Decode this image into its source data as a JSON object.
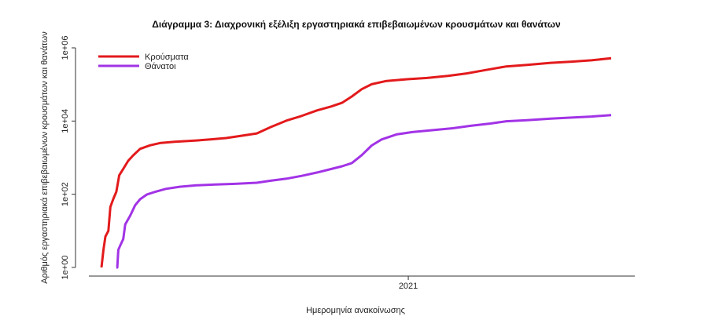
{
  "chart_data": {
    "type": "line",
    "title": "Διάγραμμα 3: Διαχρονική εξέλιξη εργαστηριακά επιβεβαιωμένων κρουσμάτων και θανάτων",
    "xlabel": "Ημερομηνία ανακοίνωσης",
    "ylabel": "Αριθμός εργαστηριακά επιβεβαιωμένων κρουσμάτων και θανάτων",
    "y_scale": "log",
    "ylim": [
      1,
      1000000
    ],
    "y_ticks": [
      {
        "value": 1,
        "label": "1e+00"
      },
      {
        "value": 100,
        "label": "1e+02"
      },
      {
        "value": 10000,
        "label": "1e+04"
      },
      {
        "value": 1000000,
        "label": "1e+06"
      }
    ],
    "xlim": [
      "2020-02-26",
      "2021-07-25"
    ],
    "x_ticks": [
      {
        "value": "2021-01-01",
        "label": "2021"
      }
    ],
    "legend_position": "top-left",
    "grid": false,
    "series": [
      {
        "name": "Κρούσματα",
        "color": "#e31a1c",
        "points": [
          [
            "2020-02-26",
            1
          ],
          [
            "2020-02-28",
            3
          ],
          [
            "2020-03-01",
            7
          ],
          [
            "2020-03-04",
            10
          ],
          [
            "2020-03-06",
            45
          ],
          [
            "2020-03-09",
            75
          ],
          [
            "2020-03-12",
            117
          ],
          [
            "2020-03-15",
            331
          ],
          [
            "2020-03-19",
            495
          ],
          [
            "2020-03-24",
            821
          ],
          [
            "2020-03-29",
            1156
          ],
          [
            "2020-04-05",
            1735
          ],
          [
            "2020-04-15",
            2170
          ],
          [
            "2020-04-25",
            2506
          ],
          [
            "2020-05-10",
            2716
          ],
          [
            "2020-06-01",
            2952
          ],
          [
            "2020-06-15",
            3148
          ],
          [
            "2020-07-01",
            3432
          ],
          [
            "2020-07-15",
            3910
          ],
          [
            "2020-08-01",
            4587
          ],
          [
            "2020-08-15",
            6858
          ],
          [
            "2020-08-31",
            10317
          ],
          [
            "2020-09-15",
            13730
          ],
          [
            "2020-10-01",
            19613
          ],
          [
            "2020-10-15",
            24973
          ],
          [
            "2020-10-26",
            31496
          ],
          [
            "2020-11-05",
            46892
          ],
          [
            "2020-11-15",
            74205
          ],
          [
            "2020-11-25",
            101287
          ],
          [
            "2020-12-10",
            124352
          ],
          [
            "2020-12-31",
            138850
          ],
          [
            "2021-01-20",
            150479
          ],
          [
            "2021-02-10",
            171495
          ],
          [
            "2021-03-01",
            200506
          ],
          [
            "2021-03-20",
            247950
          ],
          [
            "2021-04-10",
            311044
          ],
          [
            "2021-05-01",
            341874
          ],
          [
            "2021-05-25",
            390000
          ],
          [
            "2021-06-15",
            419000
          ],
          [
            "2021-07-05",
            456000
          ],
          [
            "2021-07-25",
            522000
          ]
        ]
      },
      {
        "name": "Θάνατοι",
        "color": "#a233e6",
        "points": [
          [
            "2020-03-12",
            1
          ],
          [
            "2020-03-13",
            1
          ],
          [
            "2020-03-14",
            3
          ],
          [
            "2020-03-16",
            4
          ],
          [
            "2020-03-19",
            6
          ],
          [
            "2020-03-21",
            15
          ],
          [
            "2020-03-26",
            26
          ],
          [
            "2020-03-31",
            50
          ],
          [
            "2020-04-05",
            73
          ],
          [
            "2020-04-12",
            99
          ],
          [
            "2020-04-20",
            116
          ],
          [
            "2020-05-01",
            140
          ],
          [
            "2020-05-15",
            160
          ],
          [
            "2020-06-01",
            175
          ],
          [
            "2020-06-20",
            184
          ],
          [
            "2020-07-10",
            192
          ],
          [
            "2020-08-01",
            206
          ],
          [
            "2020-08-15",
            234
          ],
          [
            "2020-08-31",
            266
          ],
          [
            "2020-09-15",
            317
          ],
          [
            "2020-10-01",
            393
          ],
          [
            "2020-10-15",
            489
          ],
          [
            "2020-10-26",
            581
          ],
          [
            "2020-11-05",
            711
          ],
          [
            "2020-11-15",
            1170
          ],
          [
            "2020-11-25",
            2150
          ],
          [
            "2020-12-05",
            3140
          ],
          [
            "2020-12-20",
            4300
          ],
          [
            "2021-01-05",
            4990
          ],
          [
            "2021-01-25",
            5630
          ],
          [
            "2021-02-15",
            6370
          ],
          [
            "2021-03-05",
            7400
          ],
          [
            "2021-03-25",
            8570
          ],
          [
            "2021-04-10",
            9890
          ],
          [
            "2021-05-01",
            10600
          ],
          [
            "2021-05-25",
            11600
          ],
          [
            "2021-06-15",
            12450
          ],
          [
            "2021-07-05",
            13300
          ],
          [
            "2021-07-25",
            14600
          ]
        ]
      }
    ]
  }
}
